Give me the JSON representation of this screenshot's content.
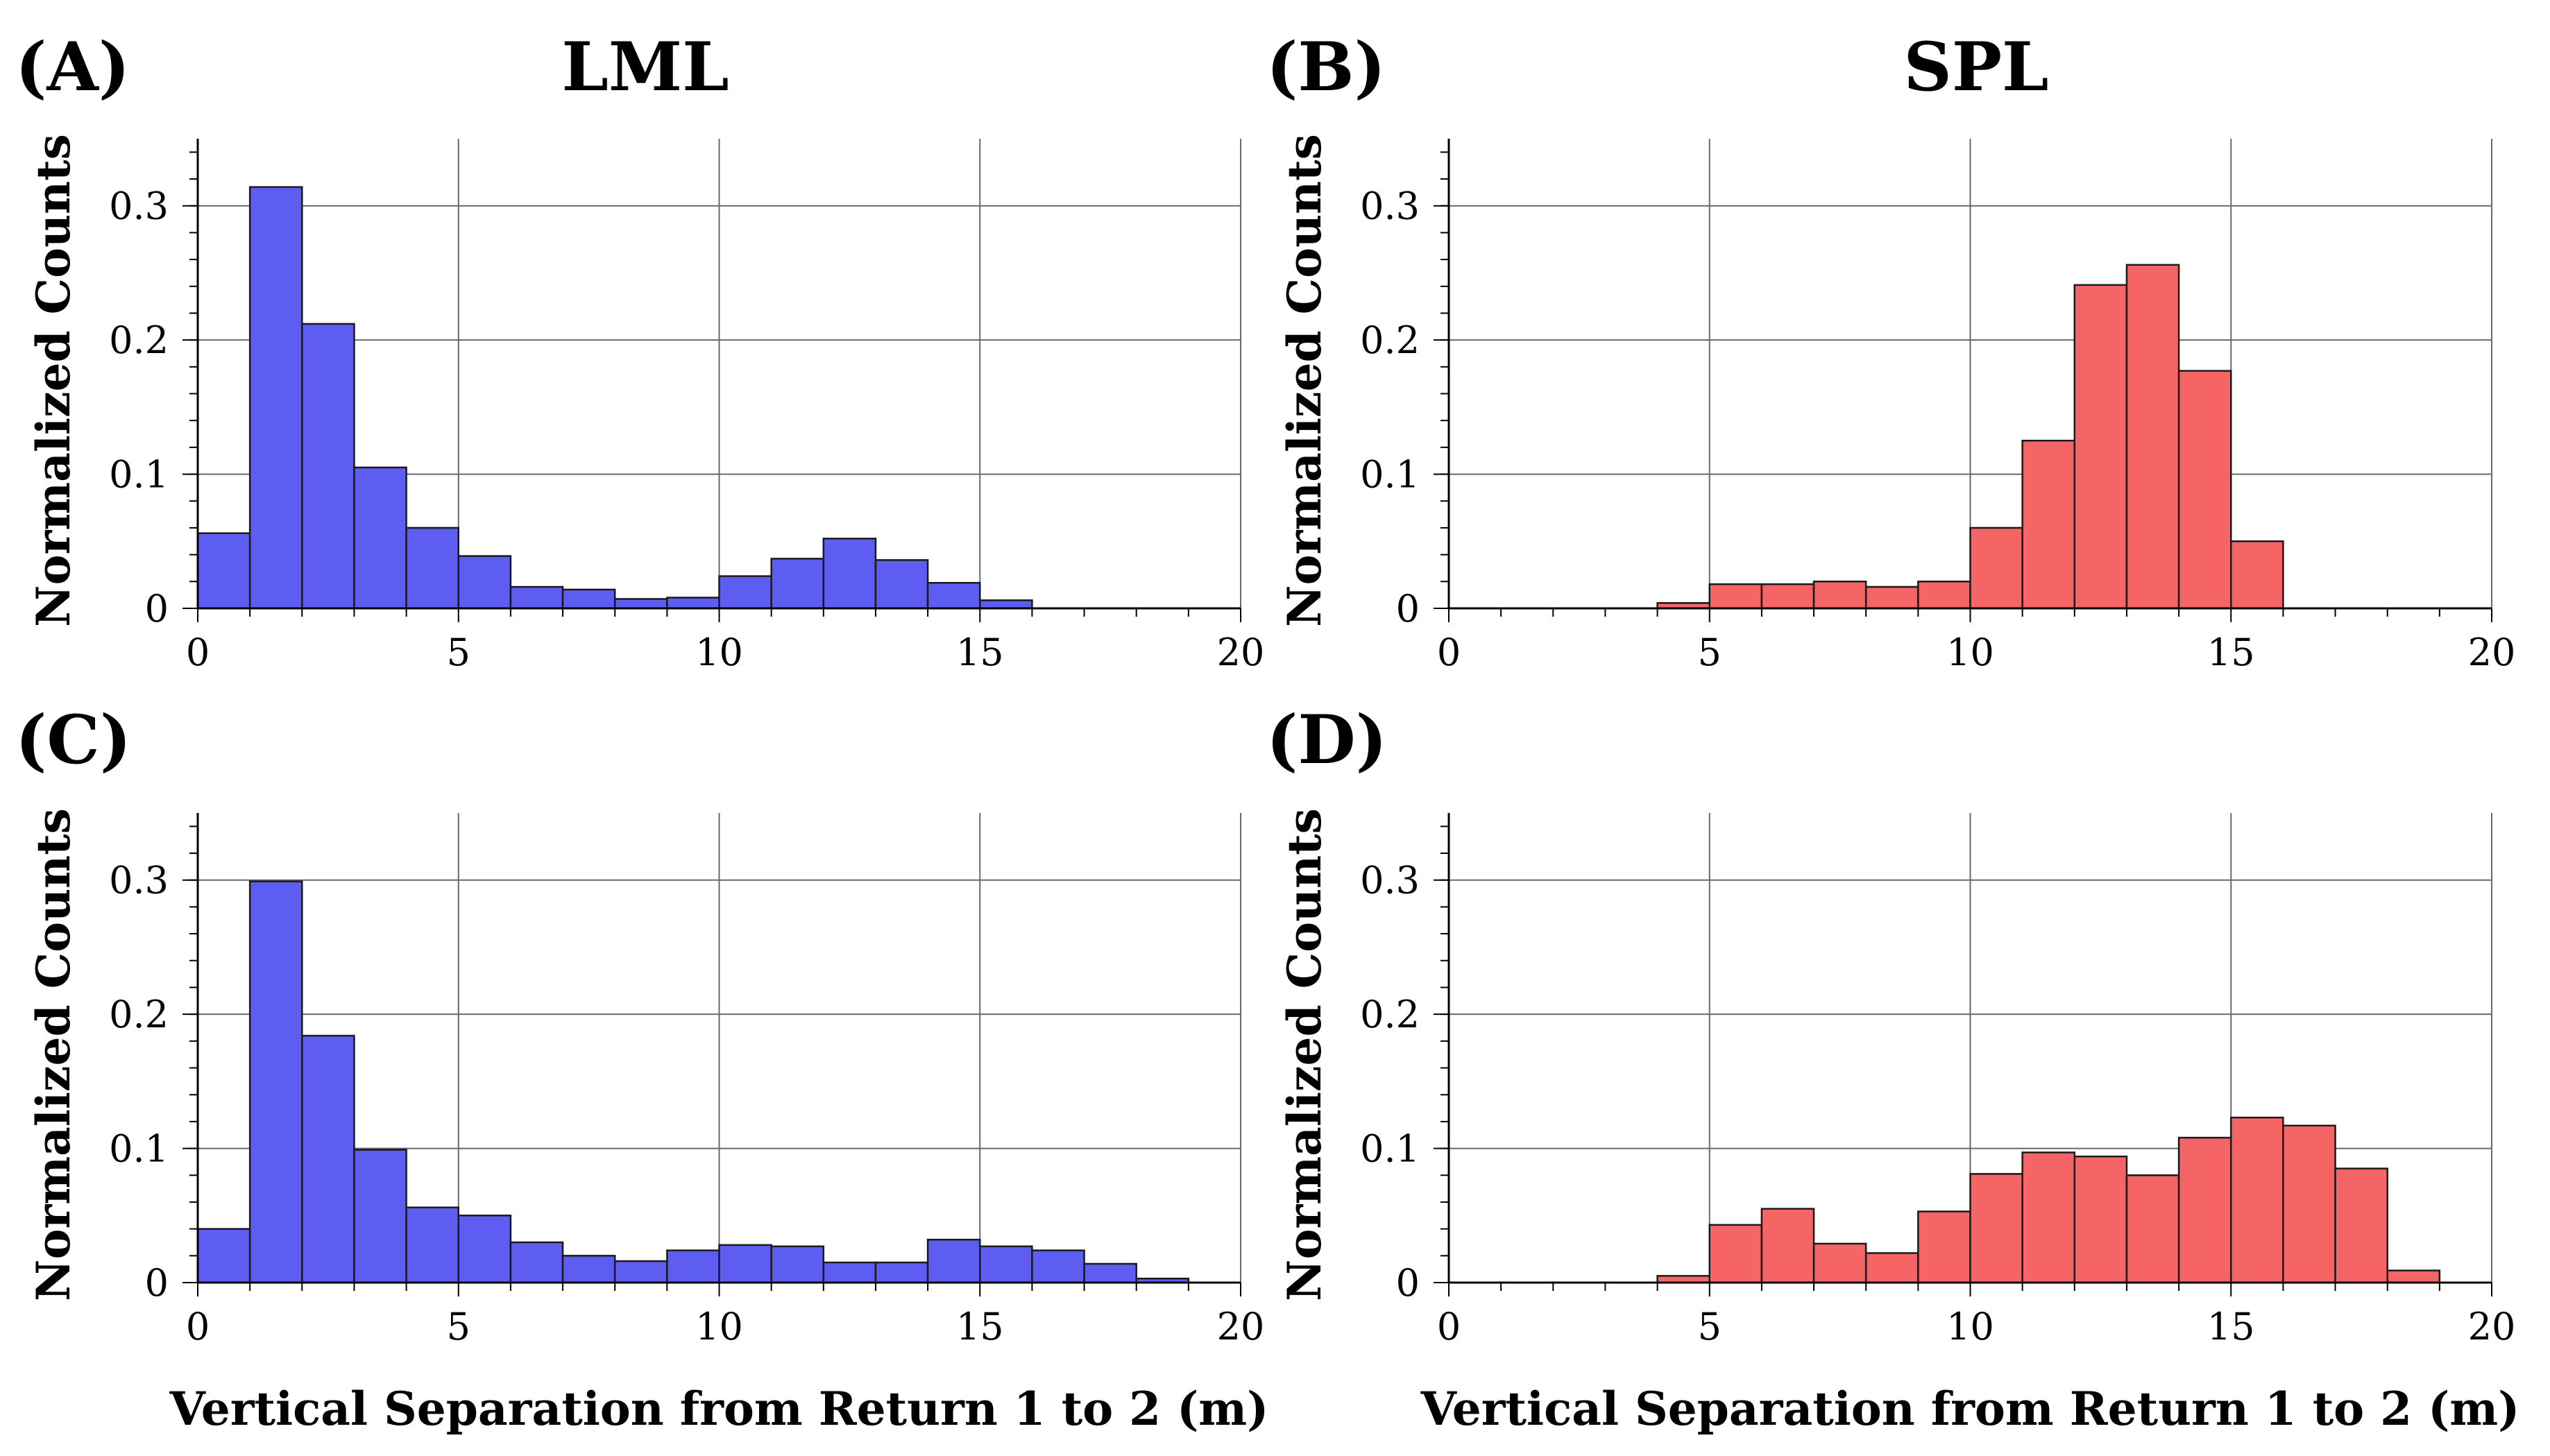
{
  "colors": {
    "lml": "#5d5df2",
    "spl": "#f56565"
  },
  "chart_data": [
    {
      "id": "A",
      "type": "bar",
      "panel_label": "(A)",
      "title": "LML",
      "xlabel": "",
      "ylabel": "Normalized Counts",
      "xlim": [
        0,
        20
      ],
      "ylim": [
        0,
        0.35
      ],
      "xticks": [
        "0",
        "5",
        "10",
        "15",
        "20"
      ],
      "yticks": [
        "0",
        "0.1",
        "0.2",
        "0.3"
      ],
      "grid": true,
      "color": "lml",
      "bin_width": 1,
      "x": [
        0,
        1,
        2,
        3,
        4,
        5,
        6,
        7,
        8,
        9,
        10,
        11,
        12,
        13,
        14,
        15,
        16,
        17,
        18,
        19
      ],
      "values": [
        0.056,
        0.314,
        0.212,
        0.105,
        0.06,
        0.039,
        0.016,
        0.014,
        0.007,
        0.008,
        0.024,
        0.037,
        0.052,
        0.036,
        0.019,
        0.006,
        0,
        0,
        0,
        0
      ]
    },
    {
      "id": "B",
      "type": "bar",
      "panel_label": "(B)",
      "title": "SPL",
      "xlabel": "",
      "ylabel": "Normalized Counts",
      "xlim": [
        0,
        20
      ],
      "ylim": [
        0,
        0.35
      ],
      "xticks": [
        "0",
        "5",
        "10",
        "15",
        "20"
      ],
      "yticks": [
        "0",
        "0.1",
        "0.2",
        "0.3"
      ],
      "grid": true,
      "color": "spl",
      "bin_width": 1,
      "x": [
        0,
        1,
        2,
        3,
        4,
        5,
        6,
        7,
        8,
        9,
        10,
        11,
        12,
        13,
        14,
        15,
        16,
        17,
        18,
        19
      ],
      "values": [
        0,
        0,
        0,
        0,
        0.004,
        0.018,
        0.018,
        0.02,
        0.016,
        0.02,
        0.06,
        0.125,
        0.241,
        0.256,
        0.177,
        0.05,
        0,
        0,
        0,
        0
      ]
    },
    {
      "id": "C",
      "type": "bar",
      "panel_label": "(C)",
      "title": "",
      "xlabel": "Vertical Separation from Return 1 to 2 (m)",
      "ylabel": "Normalized Counts",
      "xlim": [
        0,
        20
      ],
      "ylim": [
        0,
        0.35
      ],
      "xticks": [
        "0",
        "5",
        "10",
        "15",
        "20"
      ],
      "yticks": [
        "0",
        "0.1",
        "0.2",
        "0.3"
      ],
      "grid": true,
      "color": "lml",
      "bin_width": 1,
      "x": [
        0,
        1,
        2,
        3,
        4,
        5,
        6,
        7,
        8,
        9,
        10,
        11,
        12,
        13,
        14,
        15,
        16,
        17,
        18,
        19
      ],
      "values": [
        0.04,
        0.299,
        0.184,
        0.099,
        0.056,
        0.05,
        0.03,
        0.02,
        0.016,
        0.024,
        0.028,
        0.027,
        0.015,
        0.015,
        0.032,
        0.027,
        0.024,
        0.014,
        0.003,
        0
      ]
    },
    {
      "id": "D",
      "type": "bar",
      "panel_label": "(D)",
      "title": "",
      "xlabel": "Vertical Separation from Return 1 to 2 (m)",
      "ylabel": "Normalized Counts",
      "xlim": [
        0,
        20
      ],
      "ylim": [
        0,
        0.35
      ],
      "xticks": [
        "0",
        "5",
        "10",
        "15",
        "20"
      ],
      "yticks": [
        "0",
        "0.1",
        "0.2",
        "0.3"
      ],
      "grid": true,
      "color": "spl",
      "bin_width": 1,
      "x": [
        0,
        1,
        2,
        3,
        4,
        5,
        6,
        7,
        8,
        9,
        10,
        11,
        12,
        13,
        14,
        15,
        16,
        17,
        18,
        19
      ],
      "values": [
        0,
        0,
        0,
        0,
        0.005,
        0.043,
        0.055,
        0.029,
        0.022,
        0.053,
        0.081,
        0.097,
        0.094,
        0.08,
        0.108,
        0.123,
        0.117,
        0.085,
        0.009,
        0
      ]
    }
  ]
}
